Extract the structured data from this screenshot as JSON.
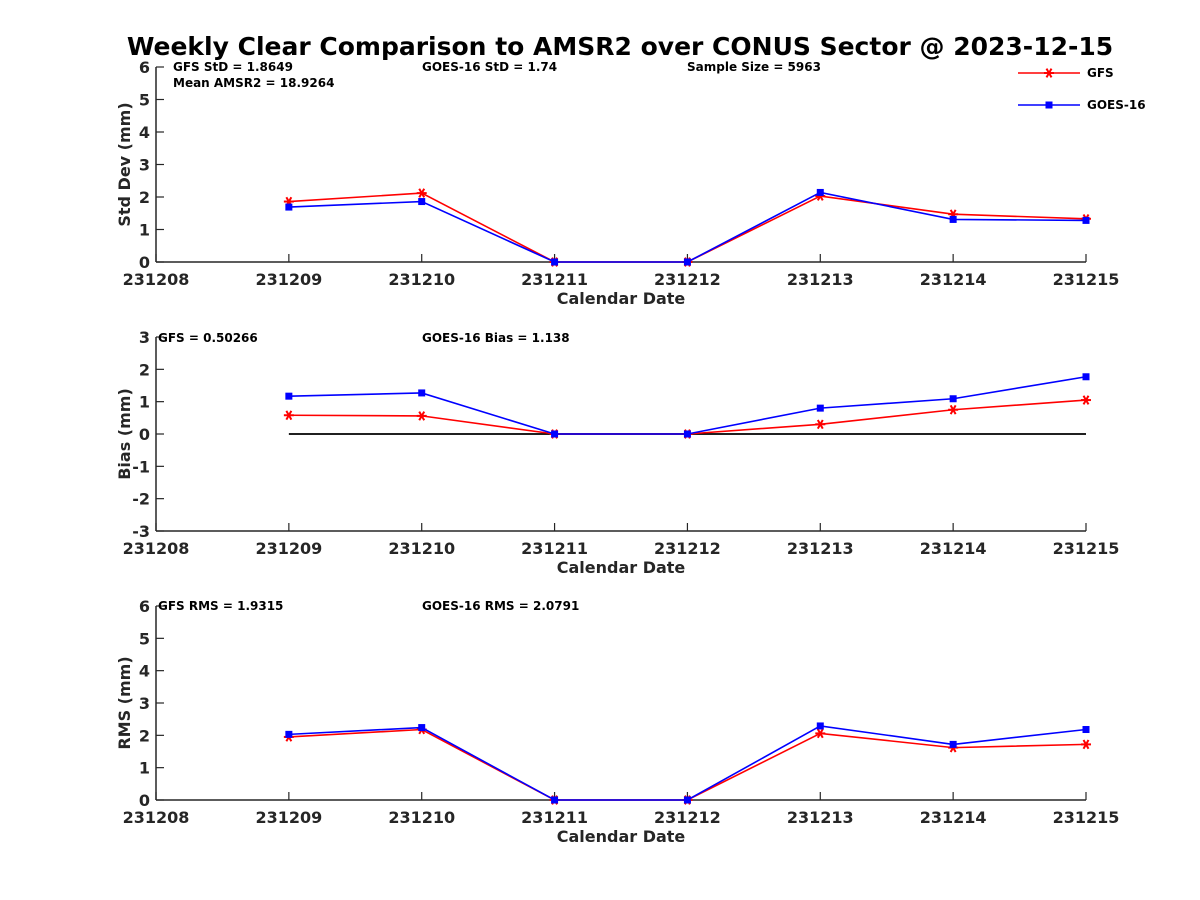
{
  "title": "Weekly Clear Comparison to AMSR2 over CONUS Sector @ 2023-12-15",
  "legend": {
    "placement": "top-right",
    "entries": [
      {
        "label": "GFS",
        "color": "#ff0000",
        "marker": "asterisk"
      },
      {
        "label": "GOES-16",
        "color": "#0000ff",
        "marker": "square"
      }
    ]
  },
  "stats": {
    "std": [
      "GFS StD = 1.8649",
      "GOES-16 StD = 1.74",
      "Sample Size = 5963",
      "Mean AMSR2 = 18.9264"
    ],
    "bias": [
      "GFS = 0.50266",
      "GOES-16 Bias  = 1.138"
    ],
    "rms": [
      "GFS RMS = 1.9315",
      "GOES-16 RMS = 2.0791"
    ]
  },
  "chart_data": [
    {
      "type": "line",
      "ylabel": "Std Dev (mm)",
      "xlabel": "Calendar Date",
      "categories": [
        "231208",
        "231209",
        "231210",
        "231211",
        "231212",
        "231213",
        "231214",
        "231215"
      ],
      "ylim": [
        0,
        6
      ],
      "yticks": [
        "0",
        "1",
        "2",
        "3",
        "4",
        "5",
        "6"
      ],
      "zero_line": false,
      "series": [
        {
          "name": "GFS",
          "values": [
            null,
            1.86,
            2.12,
            0.0,
            0.0,
            2.03,
            1.47,
            1.33
          ]
        },
        {
          "name": "GOES-16",
          "values": [
            null,
            1.69,
            1.86,
            0.0,
            0.0,
            2.14,
            1.31,
            1.28
          ]
        }
      ]
    },
    {
      "type": "line",
      "ylabel": "Bias (mm)",
      "xlabel": "Calendar Date",
      "categories": [
        "231208",
        "231209",
        "231210",
        "231211",
        "231212",
        "231213",
        "231214",
        "231215"
      ],
      "ylim": [
        -3,
        3
      ],
      "yticks": [
        "-3",
        "-2",
        "-1",
        "0",
        "1",
        "2",
        "3"
      ],
      "zero_line": true,
      "series": [
        {
          "name": "GFS",
          "values": [
            null,
            0.58,
            0.56,
            0.0,
            0.0,
            0.3,
            0.75,
            1.05
          ]
        },
        {
          "name": "GOES-16",
          "values": [
            null,
            1.17,
            1.27,
            0.0,
            0.0,
            0.8,
            1.09,
            1.77
          ]
        }
      ]
    },
    {
      "type": "line",
      "ylabel": "RMS (mm)",
      "xlabel": "Calendar Date",
      "categories": [
        "231208",
        "231209",
        "231210",
        "231211",
        "231212",
        "231213",
        "231214",
        "231215"
      ],
      "ylim": [
        0,
        6
      ],
      "yticks": [
        "0",
        "1",
        "2",
        "3",
        "4",
        "5",
        "6"
      ],
      "zero_line": false,
      "series": [
        {
          "name": "GFS",
          "values": [
            null,
            1.95,
            2.18,
            0.0,
            0.0,
            2.06,
            1.62,
            1.72
          ]
        },
        {
          "name": "GOES-16",
          "values": [
            null,
            2.03,
            2.24,
            0.0,
            0.0,
            2.29,
            1.72,
            2.18
          ]
        }
      ]
    }
  ]
}
